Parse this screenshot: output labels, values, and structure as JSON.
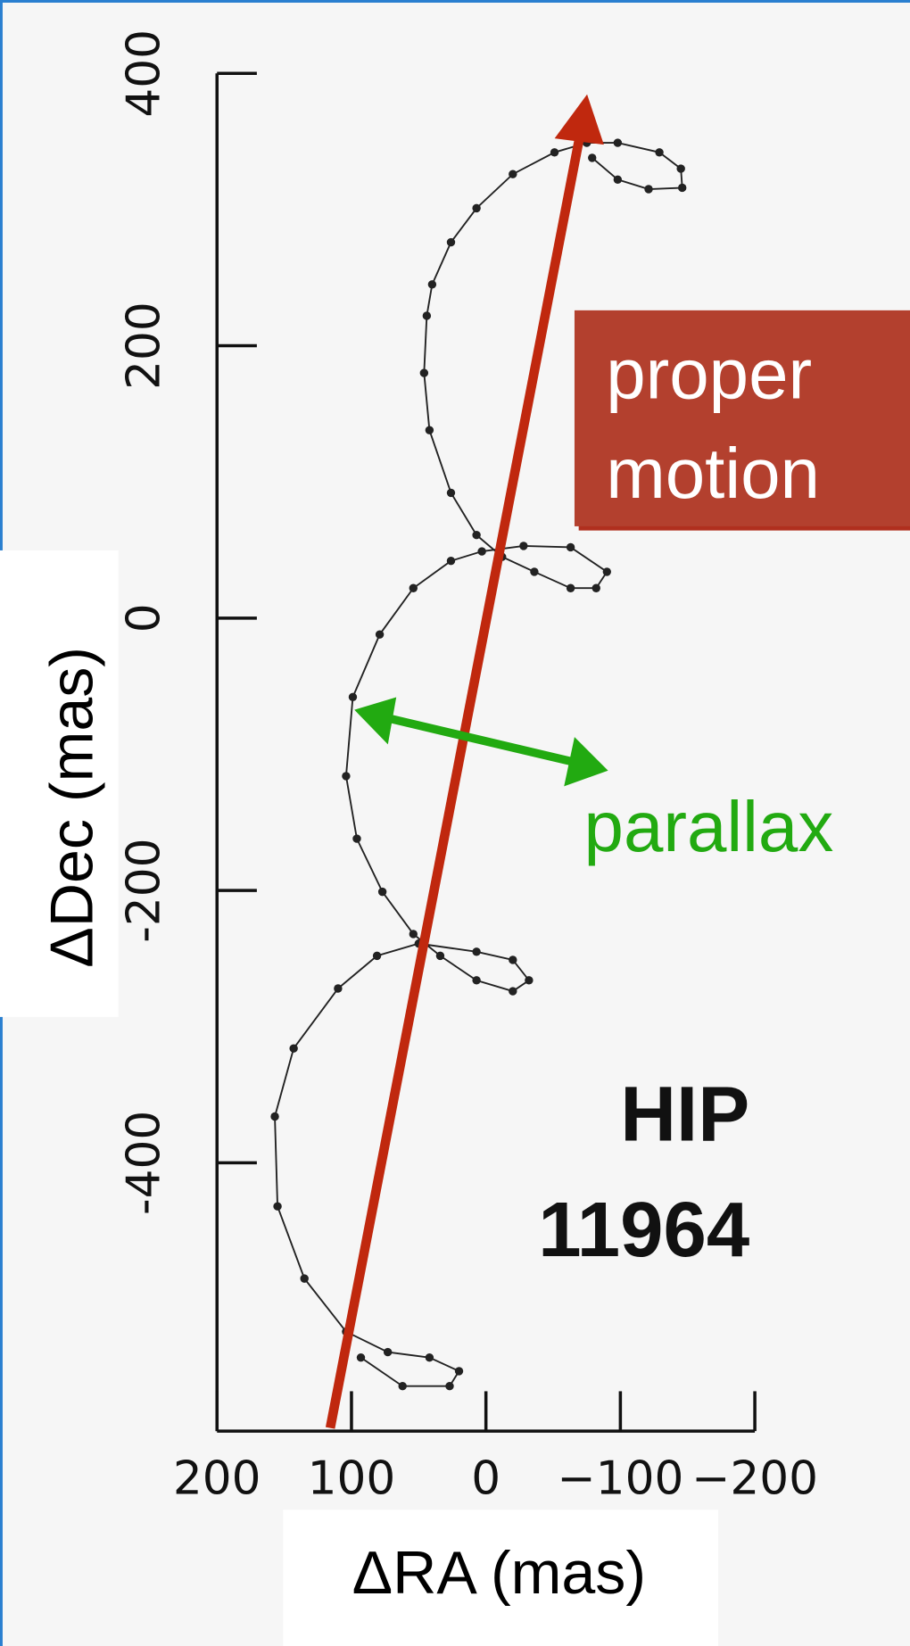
{
  "chart_data": {
    "type": "line",
    "x_label": "ΔRA (mas)",
    "y_label": "ΔDec (mas)",
    "xlim": [
      200,
      -200
    ],
    "ylim": [
      -597,
      400
    ],
    "xticks": [
      200,
      100,
      0,
      {
        "value": -100,
        "label": "−100"
      },
      {
        "value": -200,
        "label": "−200"
      }
    ],
    "yticks": [
      400,
      200,
      0,
      -200,
      -400
    ],
    "color": "#222222",
    "x": [
      93,
      62,
      27,
      20,
      42,
      73,
      104,
      135,
      155,
      157,
      143,
      110,
      81,
      50,
      7,
      -20,
      -32,
      -20,
      7,
      34,
      54,
      77,
      96,
      104,
      99,
      79,
      54,
      26,
      3,
      -28,
      -63,
      -90,
      -82,
      -63,
      -36,
      -12,
      7,
      26,
      42,
      46,
      44,
      40,
      26,
      7,
      -20,
      -51,
      -75,
      -98,
      -129,
      -145,
      -146,
      -121,
      -98,
      -79
    ],
    "values": [
      -543,
      -564,
      -564,
      -553,
      -543,
      -539,
      -524,
      -485,
      -432,
      -366,
      -316,
      -272,
      -248,
      -239,
      -245,
      -251,
      -266,
      -274,
      -266,
      -248,
      -232,
      -201,
      -162,
      -116,
      -58,
      -12,
      22,
      42,
      49,
      53,
      52,
      34,
      22,
      22,
      34,
      45,
      61,
      92,
      138,
      180,
      222,
      245,
      276,
      301,
      326,
      342,
      349,
      349,
      342,
      330,
      316,
      315,
      322,
      338
    ],
    "annotations": {
      "proper_motion": [
        "proper",
        "motion"
      ],
      "parallax": "parallax",
      "star": [
        "HIP",
        "11964"
      ]
    }
  }
}
